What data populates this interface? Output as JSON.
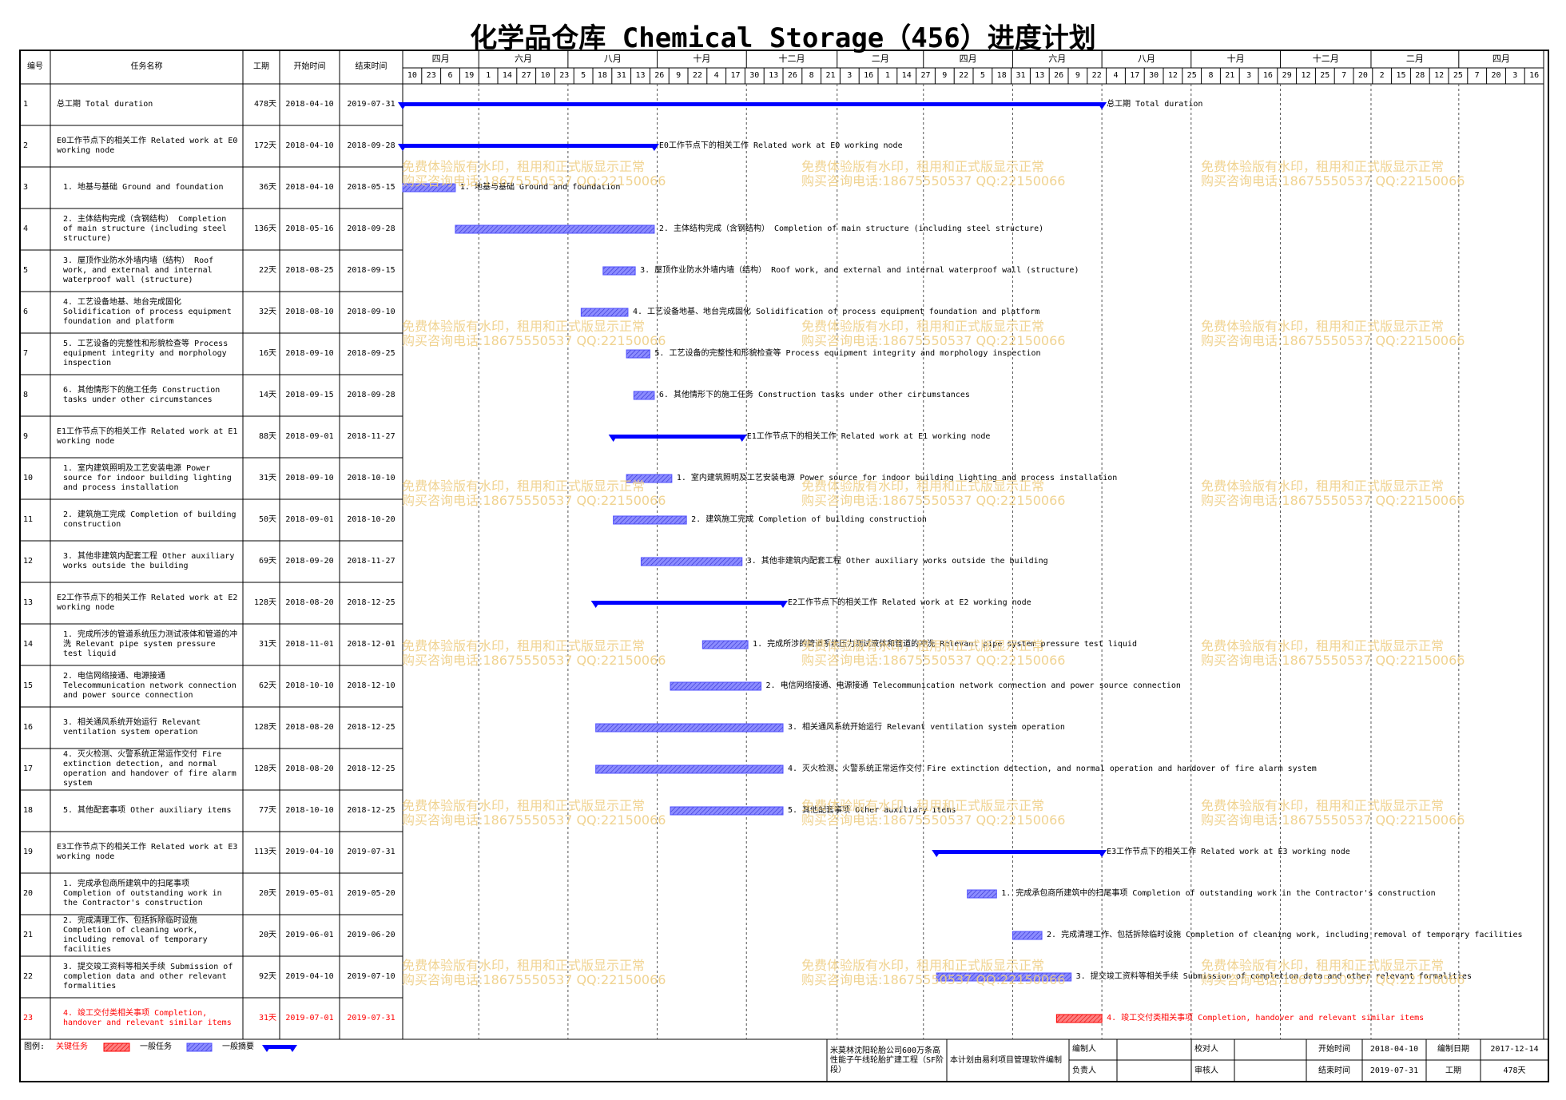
{
  "title": "化学品仓库 Chemical Storage（456）进度计划",
  "columns": [
    "编号",
    "任务名称",
    "工期",
    "开始时间",
    "结束时间"
  ],
  "timescale": {
    "months": [
      "四月",
      "六月",
      "八月",
      "十月",
      "十二月",
      "二月",
      "四月",
      "六月",
      "八月",
      "十月",
      "十二月",
      "二月",
      "四月"
    ],
    "days": [
      10,
      23,
      6,
      19,
      1,
      14,
      27,
      10,
      23,
      5,
      18,
      31,
      13,
      26,
      9,
      22,
      4,
      17,
      30,
      13,
      26,
      8,
      21,
      3,
      16,
      1,
      14,
      27,
      9,
      22,
      5,
      18,
      31,
      13,
      26,
      9,
      22,
      4,
      17,
      30,
      12,
      25,
      8,
      21,
      3,
      16,
      29,
      12,
      25,
      7,
      20,
      2,
      15,
      28,
      12,
      25,
      7,
      20,
      3,
      16
    ]
  },
  "colors": {
    "summary": "#0000ff",
    "task": "#5050ff",
    "critical": "#ff0000"
  },
  "rows": [
    {
      "id": 1,
      "name": "总工期 Total duration",
      "duration": "478天",
      "start": "2018-04-10",
      "end": "2019-07-31",
      "kind": "summary"
    },
    {
      "id": 2,
      "name": "E0工作节点下的相关工作 Related work at E0 working node",
      "duration": "172天",
      "start": "2018-04-10",
      "end": "2018-09-28",
      "kind": "summary"
    },
    {
      "id": 3,
      "name": "1. 地基与基础 Ground and foundation",
      "duration": "36天",
      "start": "2018-04-10",
      "end": "2018-05-15",
      "kind": "task"
    },
    {
      "id": 4,
      "name": "2. 主体结构完成（含钢结构） Completion of main structure (including steel structure)",
      "duration": "136天",
      "start": "2018-05-16",
      "end": "2018-09-28",
      "kind": "task"
    },
    {
      "id": 5,
      "name": "3. 屋顶作业防水外墙内墙（结构） Roof work, and external and internal waterproof wall (structure)",
      "duration": "22天",
      "start": "2018-08-25",
      "end": "2018-09-15",
      "kind": "task"
    },
    {
      "id": 6,
      "name": "4. 工艺设备地基、地台完成固化 Solidification of process equipment foundation and platform",
      "duration": "32天",
      "start": "2018-08-10",
      "end": "2018-09-10",
      "kind": "task"
    },
    {
      "id": 7,
      "name": "5. 工艺设备的完整性和形貌检查等 Process equipment integrity and morphology inspection",
      "duration": "16天",
      "start": "2018-09-10",
      "end": "2018-09-25",
      "kind": "task"
    },
    {
      "id": 8,
      "name": "6. 其他情形下的施工任务 Construction tasks under other circumstances",
      "duration": "14天",
      "start": "2018-09-15",
      "end": "2018-09-28",
      "kind": "task"
    },
    {
      "id": 9,
      "name": "E1工作节点下的相关工作 Related work at E1 working node",
      "duration": "88天",
      "start": "2018-09-01",
      "end": "2018-11-27",
      "kind": "summary"
    },
    {
      "id": 10,
      "name": "1. 室内建筑照明及工艺安装电源 Power source for indoor building lighting and process installation",
      "duration": "31天",
      "start": "2018-09-10",
      "end": "2018-10-10",
      "kind": "task"
    },
    {
      "id": 11,
      "name": "2. 建筑施工完成 Completion of building construction",
      "duration": "50天",
      "start": "2018-09-01",
      "end": "2018-10-20",
      "kind": "task"
    },
    {
      "id": 12,
      "name": "3. 其他非建筑内配套工程 Other auxiliary works outside the building",
      "duration": "69天",
      "start": "2018-09-20",
      "end": "2018-11-27",
      "kind": "task"
    },
    {
      "id": 13,
      "name": "E2工作节点下的相关工作 Related work at E2 working node",
      "duration": "128天",
      "start": "2018-08-20",
      "end": "2018-12-25",
      "kind": "summary"
    },
    {
      "id": 14,
      "name": "1. 完成所涉的管道系统压力测试液体和管道的冲洗 Relevant pipe system pressure test liquid",
      "duration": "31天",
      "start": "2018-11-01",
      "end": "2018-12-01",
      "kind": "task"
    },
    {
      "id": 15,
      "name": "2. 电信网络接通、电源接通 Telecommunication network connection and power source connection",
      "duration": "62天",
      "start": "2018-10-10",
      "end": "2018-12-10",
      "kind": "task"
    },
    {
      "id": 16,
      "name": "3. 相关通风系统开始运行 Relevant ventilation system operation",
      "duration": "128天",
      "start": "2018-08-20",
      "end": "2018-12-25",
      "kind": "task"
    },
    {
      "id": 17,
      "name": "4. 灭火检测、火警系统正常运作交付 Fire extinction detection, and normal operation and handover of fire alarm system",
      "duration": "128天",
      "start": "2018-08-20",
      "end": "2018-12-25",
      "kind": "task"
    },
    {
      "id": 18,
      "name": "5. 其他配套事项 Other auxiliary items",
      "duration": "77天",
      "start": "2018-10-10",
      "end": "2018-12-25",
      "kind": "task"
    },
    {
      "id": 19,
      "name": "E3工作节点下的相关工作 Related work at E3 working node",
      "duration": "113天",
      "start": "2019-04-10",
      "end": "2019-07-31",
      "kind": "summary"
    },
    {
      "id": 20,
      "name": "1. 完成承包商所建筑中的扫尾事项 Completion of outstanding work in the Contractor's construction",
      "duration": "20天",
      "start": "2019-05-01",
      "end": "2019-05-20",
      "kind": "task"
    },
    {
      "id": 21,
      "name": "2. 完成清理工作、包括拆除临时设施 Completion of cleaning work, including removal of temporary facilities",
      "duration": "20天",
      "start": "2019-06-01",
      "end": "2019-06-20",
      "kind": "task"
    },
    {
      "id": 22,
      "name": "3. 提交竣工资料等相关手续 Submission of completion data and other relevant formalities",
      "duration": "92天",
      "start": "2019-04-10",
      "end": "2019-07-10",
      "kind": "task"
    },
    {
      "id": 23,
      "name": "4. 竣工交付类相关事项 Completion, handover and relevant similar items",
      "duration": "31天",
      "start": "2019-07-01",
      "end": "2019-07-31",
      "kind": "critical"
    }
  ],
  "watermark": [
    "免费体验版有水印，租用和正式版显示正常",
    "购买咨询电话:18675550537 QQ:22150066"
  ],
  "legend": {
    "label": "图例:",
    "items": [
      {
        "name": "关键任务",
        "kind": "critical"
      },
      {
        "name": "一般任务",
        "kind": "task"
      },
      {
        "name": "一般摘要",
        "kind": "summary"
      }
    ]
  },
  "footer": {
    "project": "米莫林沈阳轮胎公司600万条高性能子午线轮胎扩建工程（SF阶段）",
    "software": "本计划由易利项目管理软件编制",
    "prepared_by": "编制人",
    "checked_by": "校对人",
    "start_label": "开始时间",
    "start": "2018-04-10",
    "date_label": "编制日期",
    "date": "2017-12-14",
    "owner": "负责人",
    "reviewer": "审核人",
    "end_label": "结束时间",
    "end": "2019-07-31",
    "duration_label": "工期",
    "duration": "478天"
  }
}
